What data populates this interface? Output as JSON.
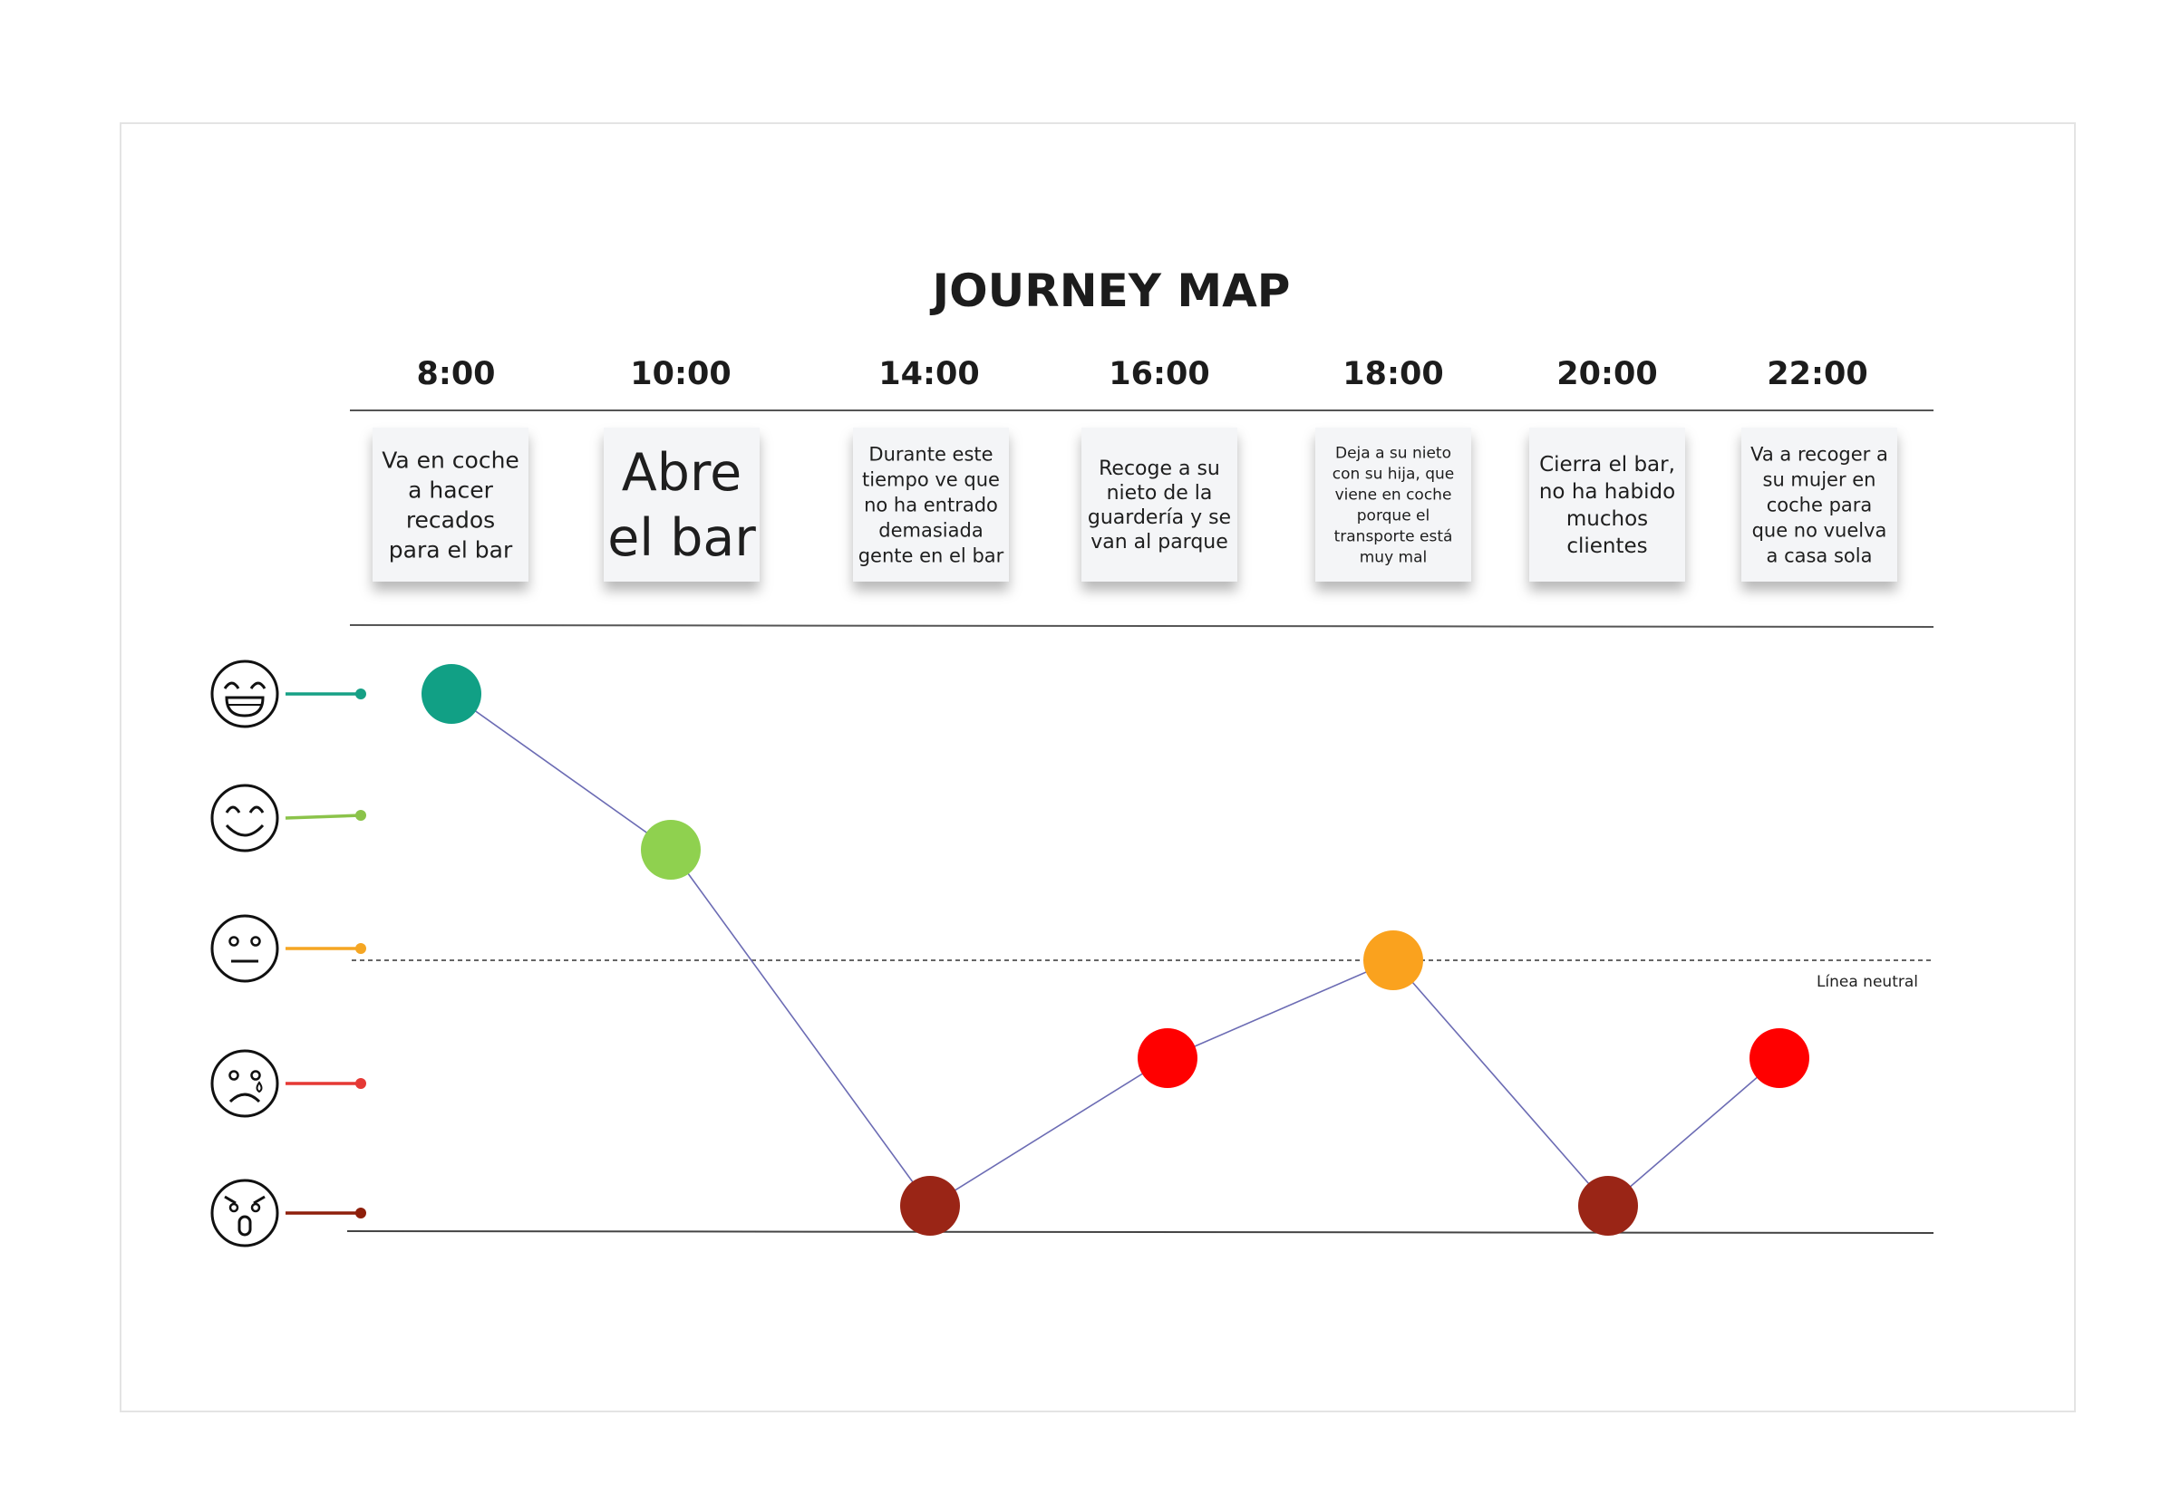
{
  "title": "JOURNEY MAP",
  "neutral_line_label": "Línea neutral",
  "mood_levels": [
    {
      "name": "muy-feliz",
      "color": "#16a085",
      "icon": "laughing-face-icon"
    },
    {
      "name": "feliz",
      "color": "#8bc34a",
      "icon": "smiling-face-icon"
    },
    {
      "name": "neutral",
      "color": "#f5a623",
      "icon": "neutral-face-icon"
    },
    {
      "name": "triste",
      "color": "#e53935",
      "icon": "crying-face-icon"
    },
    {
      "name": "enfadado",
      "color": "#8e1f0b",
      "icon": "angry-face-icon"
    }
  ],
  "timeline": [
    {
      "time": "8:00",
      "note": [
        "Va en coche",
        "a hacer",
        "recados",
        "para el bar"
      ],
      "mood": 0,
      "color": "#11a085"
    },
    {
      "time": "10:00",
      "note": [
        "Abre",
        "el bar"
      ],
      "mood": 1,
      "color": "#8fd14f"
    },
    {
      "time": "14:00",
      "note": [
        "Durante este",
        "tiempo ve que",
        "no ha entrado",
        "demasiada",
        "gente en el bar"
      ],
      "mood": 4,
      "color": "#9a2516"
    },
    {
      "time": "16:00",
      "note": [
        "Recoge a su",
        "nieto de la",
        "guardería y se",
        "van al parque"
      ],
      "mood": 3,
      "color": "#ff0000"
    },
    {
      "time": "18:00",
      "note": [
        "Deja a su nieto",
        "con su hija, que",
        "viene en coche",
        "porque el",
        "transporte está",
        "muy mal"
      ],
      "mood": 2,
      "color": "#faa21e"
    },
    {
      "time": "20:00",
      "note": [
        "Cierra el bar,",
        "no ha habido",
        "muchos",
        "clientes"
      ],
      "mood": 4,
      "color": "#9a2516"
    },
    {
      "time": "22:00",
      "note": [
        "Va a recoger a",
        "su mujer en",
        "coche para",
        "que no vuelva",
        "a casa sola"
      ],
      "mood": 3,
      "color": "#ff0000"
    }
  ],
  "chart_data": {
    "type": "line",
    "title": "JOURNEY MAP",
    "x": [
      "8:00",
      "10:00",
      "14:00",
      "16:00",
      "18:00",
      "20:00",
      "22:00"
    ],
    "series": [
      {
        "values": [
          2,
          1,
          -2,
          -1,
          0,
          -2,
          -1
        ]
      }
    ],
    "ylim": [
      -2,
      2
    ],
    "annotations": [
      "Línea neutral"
    ]
  }
}
